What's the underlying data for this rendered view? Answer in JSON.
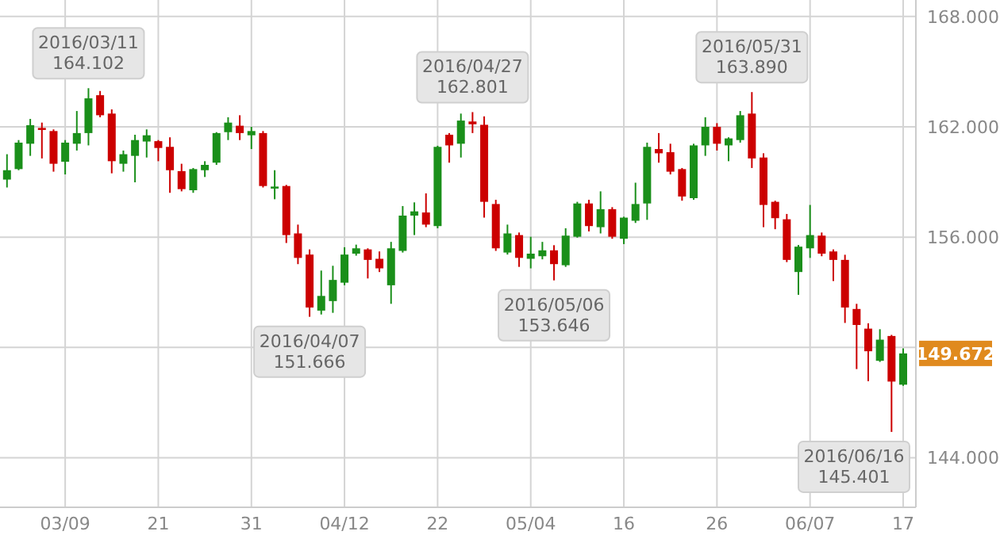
{
  "chart_data": {
    "type": "candlestick",
    "categories": [
      null,
      null,
      null,
      null,
      null,
      "03/09",
      null,
      null,
      null,
      null,
      null,
      null,
      null,
      "21",
      null,
      null,
      null,
      null,
      null,
      null,
      null,
      "31",
      null,
      null,
      null,
      null,
      null,
      null,
      null,
      "04/12",
      null,
      null,
      null,
      null,
      null,
      null,
      null,
      "22",
      null,
      null,
      null,
      null,
      null,
      null,
      null,
      "05/04",
      null,
      null,
      null,
      null,
      null,
      null,
      null,
      "16",
      null,
      null,
      null,
      null,
      null,
      null,
      null,
      "26",
      null,
      null,
      null,
      null,
      null,
      null,
      null,
      "06/07",
      null,
      null,
      null,
      null,
      null,
      null,
      null,
      "17"
    ],
    "ohlc": [
      [
        159.13,
        160.51,
        158.7,
        159.64
      ],
      [
        159.7,
        161.28,
        159.64,
        161.14
      ],
      [
        161.08,
        162.43,
        160.42,
        162.09
      ],
      [
        161.94,
        162.23,
        160.28,
        161.83
      ],
      [
        161.77,
        161.86,
        159.56,
        159.99
      ],
      [
        160.1,
        161.28,
        159.41,
        161.14
      ],
      [
        161.08,
        162.86,
        160.71,
        161.66
      ],
      [
        161.66,
        164.102,
        160.99,
        163.55
      ],
      [
        163.72,
        163.95,
        162.52,
        162.63
      ],
      [
        162.72,
        162.95,
        159.47,
        160.13
      ],
      [
        159.99,
        160.71,
        159.56,
        160.51
      ],
      [
        160.42,
        161.57,
        158.98,
        161.28
      ],
      [
        161.2,
        161.86,
        160.33,
        161.54
      ],
      [
        161.22,
        161.28,
        160.13,
        160.85
      ],
      [
        160.91,
        161.43,
        158.41,
        159.64
      ],
      [
        159.59,
        159.99,
        158.49,
        158.61
      ],
      [
        158.55,
        159.76,
        158.41,
        159.7
      ],
      [
        159.64,
        160.13,
        159.27,
        159.93
      ],
      [
        160.05,
        161.71,
        159.93,
        161.66
      ],
      [
        161.71,
        162.52,
        161.28,
        162.23
      ],
      [
        162.06,
        162.63,
        161.28,
        161.66
      ],
      [
        161.54,
        162.0,
        160.79,
        161.77
      ],
      [
        161.66,
        161.77,
        158.7,
        158.78
      ],
      [
        158.64,
        159.64,
        158.06,
        158.75
      ],
      [
        158.78,
        158.84,
        155.68,
        156.11
      ],
      [
        156.2,
        156.68,
        154.53,
        154.87
      ],
      [
        155.05,
        155.33,
        151.666,
        152.17
      ],
      [
        152.0,
        154.18,
        151.79,
        152.8
      ],
      [
        152.52,
        154.44,
        151.88,
        153.67
      ],
      [
        153.52,
        155.45,
        153.38,
        155.05
      ],
      [
        155.1,
        155.59,
        154.99,
        155.39
      ],
      [
        155.33,
        155.39,
        153.75,
        154.76
      ],
      [
        154.82,
        155.22,
        154.1,
        154.3
      ],
      [
        153.38,
        155.74,
        152.37,
        155.39
      ],
      [
        155.25,
        157.69,
        155.16,
        157.17
      ],
      [
        157.17,
        157.89,
        156.11,
        157.4
      ],
      [
        157.34,
        158.38,
        156.54,
        156.68
      ],
      [
        156.6,
        160.97,
        156.48,
        160.91
      ],
      [
        161.57,
        161.66,
        160.05,
        160.99
      ],
      [
        161.08,
        162.72,
        160.33,
        162.34
      ],
      [
        162.29,
        162.801,
        161.66,
        162.14
      ],
      [
        162.11,
        162.57,
        157.06,
        157.92
      ],
      [
        157.8,
        158.03,
        155.25,
        155.39
      ],
      [
        155.16,
        156.68,
        155.05,
        156.2
      ],
      [
        156.11,
        156.25,
        154.38,
        154.87
      ],
      [
        154.82,
        156.02,
        154.3,
        155.1
      ],
      [
        154.96,
        155.74,
        154.79,
        155.28
      ],
      [
        155.28,
        155.56,
        153.646,
        154.53
      ],
      [
        154.47,
        156.48,
        154.38,
        156.08
      ],
      [
        156.02,
        157.92,
        155.97,
        157.83
      ],
      [
        157.83,
        158.03,
        156.31,
        156.6
      ],
      [
        156.54,
        158.49,
        156.2,
        157.52
      ],
      [
        157.52,
        157.63,
        155.91,
        156.02
      ],
      [
        155.91,
        157.11,
        155.62,
        157.06
      ],
      [
        156.89,
        158.96,
        156.77,
        157.8
      ],
      [
        157.83,
        161.14,
        156.94,
        160.91
      ],
      [
        160.79,
        161.66,
        160.05,
        160.56
      ],
      [
        160.62,
        161.08,
        159.41,
        159.56
      ],
      [
        159.7,
        159.76,
        157.98,
        158.21
      ],
      [
        158.12,
        161.08,
        158.03,
        160.99
      ],
      [
        160.99,
        162.52,
        160.42,
        162.0
      ],
      [
        162.0,
        162.2,
        160.71,
        161.08
      ],
      [
        160.99,
        161.43,
        160.13,
        161.37
      ],
      [
        161.28,
        162.86,
        161.14,
        162.63
      ],
      [
        162.72,
        163.89,
        159.76,
        160.28
      ],
      [
        160.33,
        160.56,
        156.54,
        157.75
      ],
      [
        157.92,
        157.98,
        156.43,
        157.03
      ],
      [
        156.97,
        157.26,
        154.64,
        154.76
      ],
      [
        154.1,
        155.57,
        152.86,
        155.48
      ],
      [
        155.39,
        157.75,
        154.87,
        156.11
      ],
      [
        156.08,
        156.25,
        154.96,
        155.1
      ],
      [
        155.22,
        155.33,
        153.61,
        154.76
      ],
      [
        154.76,
        155.04,
        151.33,
        152.17
      ],
      [
        152.09,
        152.37,
        148.82,
        151.22
      ],
      [
        151.02,
        151.31,
        148.16,
        149.79
      ],
      [
        149.27,
        150.99,
        149.21,
        150.42
      ],
      [
        150.62,
        150.68,
        145.401,
        148.14
      ],
      [
        147.97,
        149.95,
        147.91,
        149.672
      ]
    ],
    "ylim": [
      141.3,
      168.9
    ],
    "yticks": [
      {
        "value": 144,
        "label": "144.000"
      },
      {
        "value": 150,
        "label": null
      },
      {
        "value": 156,
        "label": "156.000"
      },
      {
        "value": 162,
        "label": "162.000"
      },
      {
        "value": 168,
        "label": "168.000"
      }
    ],
    "grid": true,
    "annotations": [
      {
        "text": "2016/03/11\n164.102",
        "y": 164.102
      },
      {
        "text": "2016/04/07\n151.666",
        "y": 151.666
      },
      {
        "text": "2016/04/27\n162.801",
        "y": 162.801
      },
      {
        "text": "2016/05/06\n153.646",
        "y": 153.646
      },
      {
        "text": "2016/05/31\n163.890",
        "y": 163.89
      },
      "2016/06/16\n145.401",
      "149.672"
    ]
  }
}
